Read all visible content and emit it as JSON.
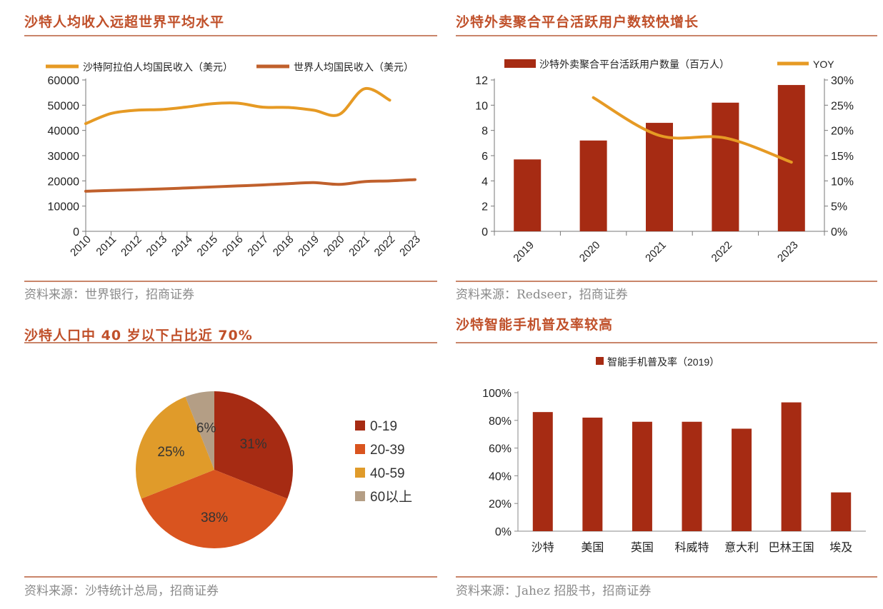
{
  "panels": {
    "income": {
      "title": "沙特人均收入远超世界平均水平",
      "source": "资料来源：世界银行，招商证券"
    },
    "delivery": {
      "title": "沙特外卖聚合平台活跃用户数较快增长",
      "source": "资料来源：Redseer，招商证券"
    },
    "population": {
      "title": "沙特人口中 40 岁以下占比近 70%",
      "source": "资料来源：沙特统计总局，招商证券"
    },
    "smartphone": {
      "title": "沙特智能手机普及率较高",
      "source": "资料来源：Jahez 招股书，招商证券"
    }
  },
  "chart_data": [
    {
      "id": "income",
      "type": "line",
      "x": [
        "2010",
        "2011",
        "2012",
        "2013",
        "2014",
        "2015",
        "2016",
        "2017",
        "2018",
        "2019",
        "2020",
        "2021",
        "2022",
        "2023"
      ],
      "series": [
        {
          "name": "沙特阿拉伯人均国民收入（美元）",
          "color": "#e69a24",
          "x": [
            2010,
            2011,
            2012,
            2013,
            2014,
            2015,
            2016,
            2017,
            2018,
            2019,
            2020,
            2021,
            2022
          ],
          "values": [
            42700,
            46700,
            48000,
            48300,
            49300,
            50600,
            50800,
            49200,
            49100,
            48000,
            46300,
            56500,
            52000
          ]
        },
        {
          "name": "世界人均国民收入（美元）",
          "color": "#c0602c",
          "x": [
            2010,
            2011,
            2012,
            2013,
            2014,
            2015,
            2016,
            2017,
            2018,
            2019,
            2020,
            2021,
            2022,
            2023
          ],
          "values": [
            15900,
            16200,
            16500,
            16800,
            17200,
            17600,
            18000,
            18400,
            18900,
            19300,
            18600,
            19700,
            20000,
            20500
          ]
        }
      ],
      "yticks": [
        "0",
        "10000",
        "20000",
        "30000",
        "40000",
        "50000",
        "60000"
      ],
      "ylim": [
        0,
        60000
      ]
    },
    {
      "id": "delivery",
      "type": "bar",
      "categories": [
        "2019",
        "2020",
        "2021",
        "2022",
        "2023"
      ],
      "bar_series": {
        "name": "沙特外卖聚合平台活跃用户数量（百万人）",
        "color": "#a62b13",
        "values": [
          5.7,
          7.2,
          8.6,
          10.2,
          11.6
        ]
      },
      "line_series": {
        "name": "YOY",
        "color": "#e69a24",
        "values": [
          null,
          0.265,
          0.19,
          0.185,
          0.137
        ]
      },
      "y_left_ticks": [
        "0",
        "2",
        "4",
        "6",
        "8",
        "10",
        "12"
      ],
      "y_left_lim": [
        0,
        12
      ],
      "y_right_ticks": [
        "0%",
        "5%",
        "10%",
        "15%",
        "20%",
        "25%",
        "30%"
      ],
      "y_right_lim": [
        0,
        0.3
      ]
    },
    {
      "id": "population",
      "type": "pie",
      "slices": [
        {
          "name": "0-19",
          "value": 31,
          "label": "31%",
          "color": "#a62b13"
        },
        {
          "name": "20-39",
          "value": 38,
          "label": "38%",
          "color": "#d9541f"
        },
        {
          "name": "40-59",
          "value": 25,
          "label": "25%",
          "color": "#e09b2a"
        },
        {
          "name": "60以上",
          "value": 6,
          "label": "6%",
          "color": "#b49e85"
        }
      ]
    },
    {
      "id": "smartphone",
      "type": "bar",
      "series": [
        {
          "name": "智能手机普及率（2019）",
          "color": "#a62b13",
          "values": [
            0.86,
            0.82,
            0.79,
            0.79,
            0.74,
            0.93,
            0.28
          ]
        }
      ],
      "categories": [
        "沙特",
        "美国",
        "英国",
        "科威特",
        "意大利",
        "巴林王国",
        "埃及"
      ],
      "yticks": [
        "0%",
        "20%",
        "40%",
        "60%",
        "80%",
        "100%"
      ],
      "ylim": [
        0,
        1
      ]
    }
  ]
}
